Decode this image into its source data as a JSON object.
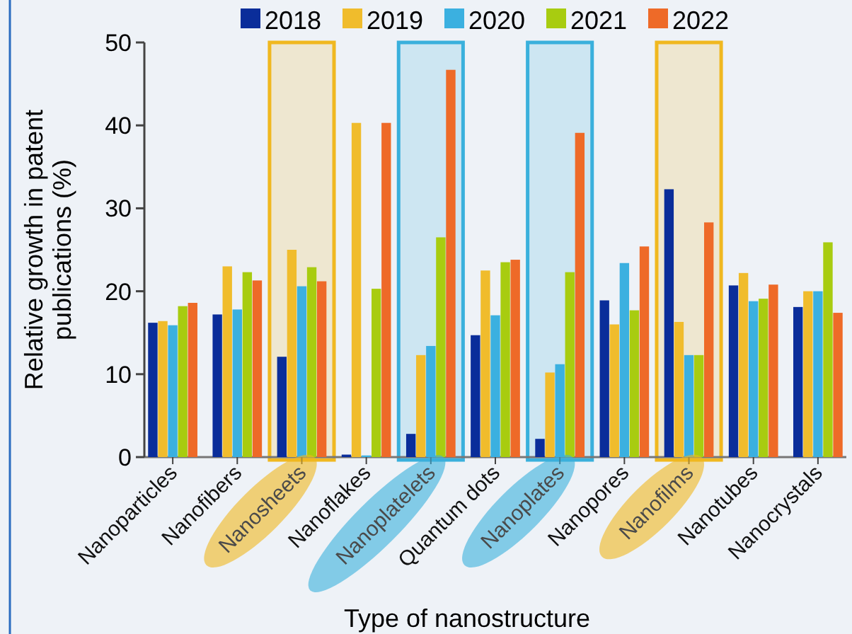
{
  "chart_data": {
    "type": "bar",
    "xlabel": "Type of nanostructure",
    "ylabel": "Relative growth in patent publications (%)",
    "categories": [
      "Nanoparticles",
      "Nanofibers",
      "Nanosheets",
      "Nanoflakes",
      "Nanoplatelets",
      "Quantum dots",
      "Nanoplates",
      "Nanopores",
      "Nanofilms",
      "Nanotubes",
      "Nanocrystals"
    ],
    "series": [
      {
        "name": "2018",
        "color": "#0a2d9a",
        "values": [
          16.2,
          17.2,
          12.1,
          0.3,
          2.8,
          14.7,
          2.2,
          18.9,
          32.3,
          20.7,
          18.1
        ]
      },
      {
        "name": "2019",
        "color": "#f0bc2c",
        "values": [
          16.4,
          23.0,
          25.0,
          40.3,
          12.3,
          22.5,
          10.2,
          16.0,
          16.3,
          22.2,
          20.0
        ]
      },
      {
        "name": "2020",
        "color": "#3bb0e0",
        "values": [
          15.9,
          17.8,
          20.6,
          0.2,
          13.4,
          17.1,
          11.2,
          23.4,
          12.3,
          18.8,
          20.0
        ]
      },
      {
        "name": "2021",
        "color": "#a8cc10",
        "values": [
          18.2,
          22.3,
          22.9,
          20.3,
          26.5,
          23.5,
          22.3,
          17.7,
          12.3,
          19.1,
          25.9
        ]
      },
      {
        "name": "2022",
        "color": "#ee6a28",
        "values": [
          18.6,
          21.3,
          21.2,
          40.3,
          46.7,
          23.8,
          39.1,
          25.4,
          28.3,
          20.8,
          17.4
        ]
      }
    ],
    "bands": [
      {
        "axis": "x",
        "from": "Nanosheets",
        "to": "Nanosheets",
        "color": "#f0b820"
      },
      {
        "axis": "x",
        "from": "Nanoplatelets",
        "to": "Nanoplatelets",
        "color": "#3ab0dc"
      },
      {
        "axis": "x",
        "from": "Nanoplates",
        "to": "Nanoplates",
        "color": "#3ab0dc"
      },
      {
        "axis": "x",
        "from": "Nanofilms",
        "to": "Nanofilms",
        "color": "#f0b820"
      }
    ],
    "ylim": [
      0,
      50
    ],
    "yticks": [
      0,
      10,
      20,
      30,
      40,
      50
    ],
    "legend": "top"
  }
}
